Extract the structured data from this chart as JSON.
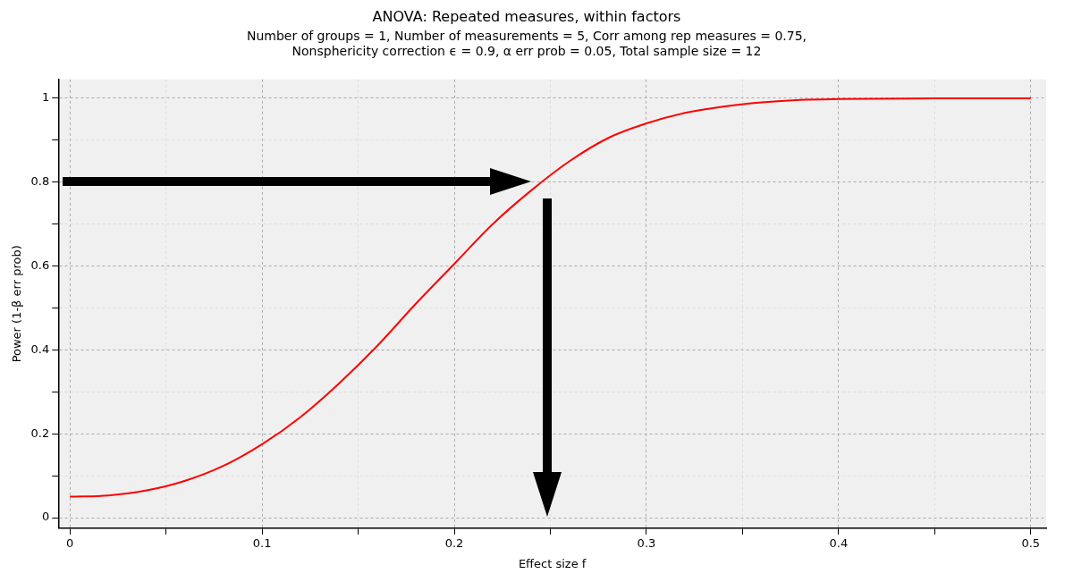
{
  "chart_data": {
    "type": "line",
    "title": "ANOVA: Repeated measures, within factors",
    "subtitle": "Number of groups = 1, Number of measurements = 5, Corr among rep measures = 0.75,\nNonsphericity correction ϵ = 0.9, α err prob = 0.05, Total sample size = 12",
    "xlabel": "Effect size f",
    "ylabel": "Power (1-β err prob)",
    "x": [
      0,
      0.02,
      0.04,
      0.06,
      0.08,
      0.1,
      0.12,
      0.14,
      0.16,
      0.18,
      0.2,
      0.22,
      0.24,
      0.26,
      0.28,
      0.3,
      0.32,
      0.34,
      0.36,
      0.38,
      0.4,
      0.45,
      0.5
    ],
    "series": [
      {
        "color": "#ff0000",
        "values": [
          0.05,
          0.053,
          0.065,
          0.088,
          0.124,
          0.175,
          0.24,
          0.32,
          0.41,
          0.51,
          0.605,
          0.7,
          0.78,
          0.85,
          0.905,
          0.94,
          0.965,
          0.98,
          0.99,
          0.996,
          0.998,
          1,
          1
        ]
      }
    ],
    "xlim": [
      -0.006,
      0.508
    ],
    "ylim": [
      -0.025,
      1.045
    ],
    "xticks": [
      0,
      {
        "value": 0.05,
        "label": null
      },
      0.1,
      {
        "value": 0.15,
        "label": null
      },
      0.2,
      {
        "value": 0.25,
        "label": null
      },
      0.3,
      {
        "value": 0.35,
        "label": null
      },
      0.4,
      {
        "value": 0.45,
        "label": null
      },
      0.5
    ],
    "yticks": [
      0,
      {
        "value": 0.1,
        "label": null
      },
      0.2,
      {
        "value": 0.3,
        "label": null
      },
      0.4,
      {
        "value": 0.5,
        "label": null
      },
      0.6,
      {
        "value": 0.7,
        "label": null
      },
      0.8,
      {
        "value": 0.9,
        "label": null
      },
      1
    ],
    "grid": true,
    "legend": false,
    "marker": "none",
    "line_style": "solid"
  }
}
